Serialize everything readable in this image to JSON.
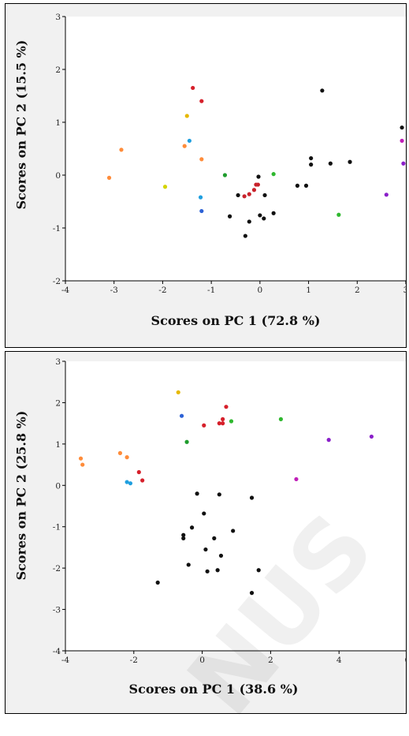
{
  "chart_data": [
    {
      "type": "scatter",
      "title": "",
      "xlabel": "Scores on PC 1 (72.8 %)",
      "ylabel": "Scores on PC 2 (15.5 %)",
      "xlim": [
        -4,
        3
      ],
      "ylim": [
        -2,
        3
      ],
      "xticks": [
        "-4",
        "-3",
        "-2",
        "-1",
        "0",
        "1",
        "2",
        "3"
      ],
      "yticks": [
        "-2",
        "-1",
        "0",
        "1",
        "2",
        "3"
      ],
      "grid": false,
      "points": [
        {
          "x": -3.1,
          "y": -0.05,
          "color": "#ff8c3a"
        },
        {
          "x": -2.85,
          "y": 0.48,
          "color": "#ff8c3a"
        },
        {
          "x": -1.95,
          "y": -0.22,
          "color": "#d4d400"
        },
        {
          "x": -1.55,
          "y": 0.55,
          "color": "#ff8c3a"
        },
        {
          "x": -1.2,
          "y": 0.3,
          "color": "#ff8c3a"
        },
        {
          "x": -1.5,
          "y": 1.12,
          "color": "#e6b800"
        },
        {
          "x": -1.45,
          "y": 0.65,
          "color": "#1f9fdf"
        },
        {
          "x": -1.38,
          "y": 1.65,
          "color": "#d6202b"
        },
        {
          "x": -1.2,
          "y": 1.4,
          "color": "#d6202b"
        },
        {
          "x": -1.22,
          "y": -0.42,
          "color": "#1f9fdf"
        },
        {
          "x": -1.2,
          "y": -0.68,
          "color": "#2d62d6"
        },
        {
          "x": -0.72,
          "y": 0.0,
          "color": "#1f9c2d"
        },
        {
          "x": -0.62,
          "y": -0.78,
          "color": "#111111"
        },
        {
          "x": -0.45,
          "y": -0.38,
          "color": "#111111"
        },
        {
          "x": -0.32,
          "y": -0.4,
          "color": "#c8232c"
        },
        {
          "x": -0.22,
          "y": -0.36,
          "color": "#c8232c"
        },
        {
          "x": -0.12,
          "y": -0.28,
          "color": "#c8232c"
        },
        {
          "x": -0.08,
          "y": -0.18,
          "color": "#c8232c"
        },
        {
          "x": -0.04,
          "y": -0.18,
          "color": "#c8232c"
        },
        {
          "x": -0.03,
          "y": -0.03,
          "color": "#111111"
        },
        {
          "x": -0.3,
          "y": -1.15,
          "color": "#111111"
        },
        {
          "x": -0.22,
          "y": -0.88,
          "color": "#111111"
        },
        {
          "x": 0.0,
          "y": -0.76,
          "color": "#111111"
        },
        {
          "x": 0.08,
          "y": -0.82,
          "color": "#111111"
        },
        {
          "x": 0.1,
          "y": -0.38,
          "color": "#111111"
        },
        {
          "x": 0.28,
          "y": -0.72,
          "color": "#111111"
        },
        {
          "x": 0.28,
          "y": 0.02,
          "color": "#2fb82f"
        },
        {
          "x": 0.77,
          "y": -0.2,
          "color": "#111111"
        },
        {
          "x": 0.95,
          "y": -0.2,
          "color": "#111111"
        },
        {
          "x": 1.05,
          "y": 0.32,
          "color": "#111111"
        },
        {
          "x": 1.05,
          "y": 0.2,
          "color": "#111111"
        },
        {
          "x": 1.28,
          "y": 1.6,
          "color": "#111111"
        },
        {
          "x": 1.45,
          "y": 0.22,
          "color": "#111111"
        },
        {
          "x": 1.62,
          "y": -0.75,
          "color": "#2fb82f"
        },
        {
          "x": 1.85,
          "y": 0.25,
          "color": "#111111"
        },
        {
          "x": 2.6,
          "y": -0.37,
          "color": "#8a1fc9"
        },
        {
          "x": 2.92,
          "y": 0.9,
          "color": "#111111"
        },
        {
          "x": 2.92,
          "y": 0.65,
          "color": "#c01fb8"
        },
        {
          "x": 2.95,
          "y": 0.22,
          "color": "#8a1fc9"
        }
      ]
    },
    {
      "type": "scatter",
      "title": "",
      "xlabel": "Scores on PC 1 (38.6 %)",
      "ylabel": "Scores on PC 2 (25.8 %)",
      "xlim": [
        -4,
        6
      ],
      "ylim": [
        -4,
        3
      ],
      "xticks": [
        "-4",
        "-2",
        "0",
        "2",
        "4",
        "6"
      ],
      "yticks": [
        "-4",
        "-3",
        "-2",
        "-1",
        "0",
        "1",
        "2",
        "3"
      ],
      "grid": false,
      "points": [
        {
          "x": -3.55,
          "y": 0.65,
          "color": "#ff8c3a"
        },
        {
          "x": -3.5,
          "y": 0.5,
          "color": "#ff8c3a"
        },
        {
          "x": -2.4,
          "y": 0.78,
          "color": "#ff8c3a"
        },
        {
          "x": -2.2,
          "y": 0.68,
          "color": "#ff8c3a"
        },
        {
          "x": -2.2,
          "y": 0.08,
          "color": "#1f9fdf"
        },
        {
          "x": -2.1,
          "y": 0.05,
          "color": "#1f9fdf"
        },
        {
          "x": -1.85,
          "y": 0.32,
          "color": "#d6202b"
        },
        {
          "x": -1.75,
          "y": 0.12,
          "color": "#d6202b"
        },
        {
          "x": -0.7,
          "y": 2.25,
          "color": "#e6b800"
        },
        {
          "x": -0.6,
          "y": 1.68,
          "color": "#2d62d6"
        },
        {
          "x": -0.45,
          "y": 1.05,
          "color": "#1f9c2d"
        },
        {
          "x": 0.05,
          "y": 1.45,
          "color": "#d6202b"
        },
        {
          "x": 0.5,
          "y": 1.5,
          "color": "#d6202b"
        },
        {
          "x": 0.6,
          "y": 1.6,
          "color": "#d6202b"
        },
        {
          "x": 0.6,
          "y": 1.5,
          "color": "#d6202b"
        },
        {
          "x": 0.7,
          "y": 1.9,
          "color": "#d6202b"
        },
        {
          "x": 0.85,
          "y": 1.55,
          "color": "#2fb82f"
        },
        {
          "x": 2.3,
          "y": 1.6,
          "color": "#2fb82f"
        },
        {
          "x": 2.75,
          "y": 0.15,
          "color": "#c01fb8"
        },
        {
          "x": 3.7,
          "y": 1.1,
          "color": "#8a1fc9"
        },
        {
          "x": 4.95,
          "y": 1.18,
          "color": "#8a1fc9"
        },
        {
          "x": -0.15,
          "y": -0.2,
          "color": "#111111"
        },
        {
          "x": 0.05,
          "y": -0.68,
          "color": "#111111"
        },
        {
          "x": -0.3,
          "y": -1.02,
          "color": "#111111"
        },
        {
          "x": -0.55,
          "y": -1.2,
          "color": "#111111"
        },
        {
          "x": -0.55,
          "y": -1.28,
          "color": "#111111"
        },
        {
          "x": 0.35,
          "y": -1.28,
          "color": "#111111"
        },
        {
          "x": 0.5,
          "y": -0.22,
          "color": "#111111"
        },
        {
          "x": 0.9,
          "y": -1.1,
          "color": "#111111"
        },
        {
          "x": 1.45,
          "y": -0.3,
          "color": "#111111"
        },
        {
          "x": 0.1,
          "y": -1.55,
          "color": "#111111"
        },
        {
          "x": 0.55,
          "y": -1.7,
          "color": "#111111"
        },
        {
          "x": -0.4,
          "y": -1.92,
          "color": "#111111"
        },
        {
          "x": 0.15,
          "y": -2.08,
          "color": "#111111"
        },
        {
          "x": 0.45,
          "y": -2.05,
          "color": "#111111"
        },
        {
          "x": 1.65,
          "y": -2.05,
          "color": "#111111"
        },
        {
          "x": -1.3,
          "y": -2.35,
          "color": "#111111"
        },
        {
          "x": 1.45,
          "y": -2.6,
          "color": "#111111"
        }
      ]
    }
  ]
}
